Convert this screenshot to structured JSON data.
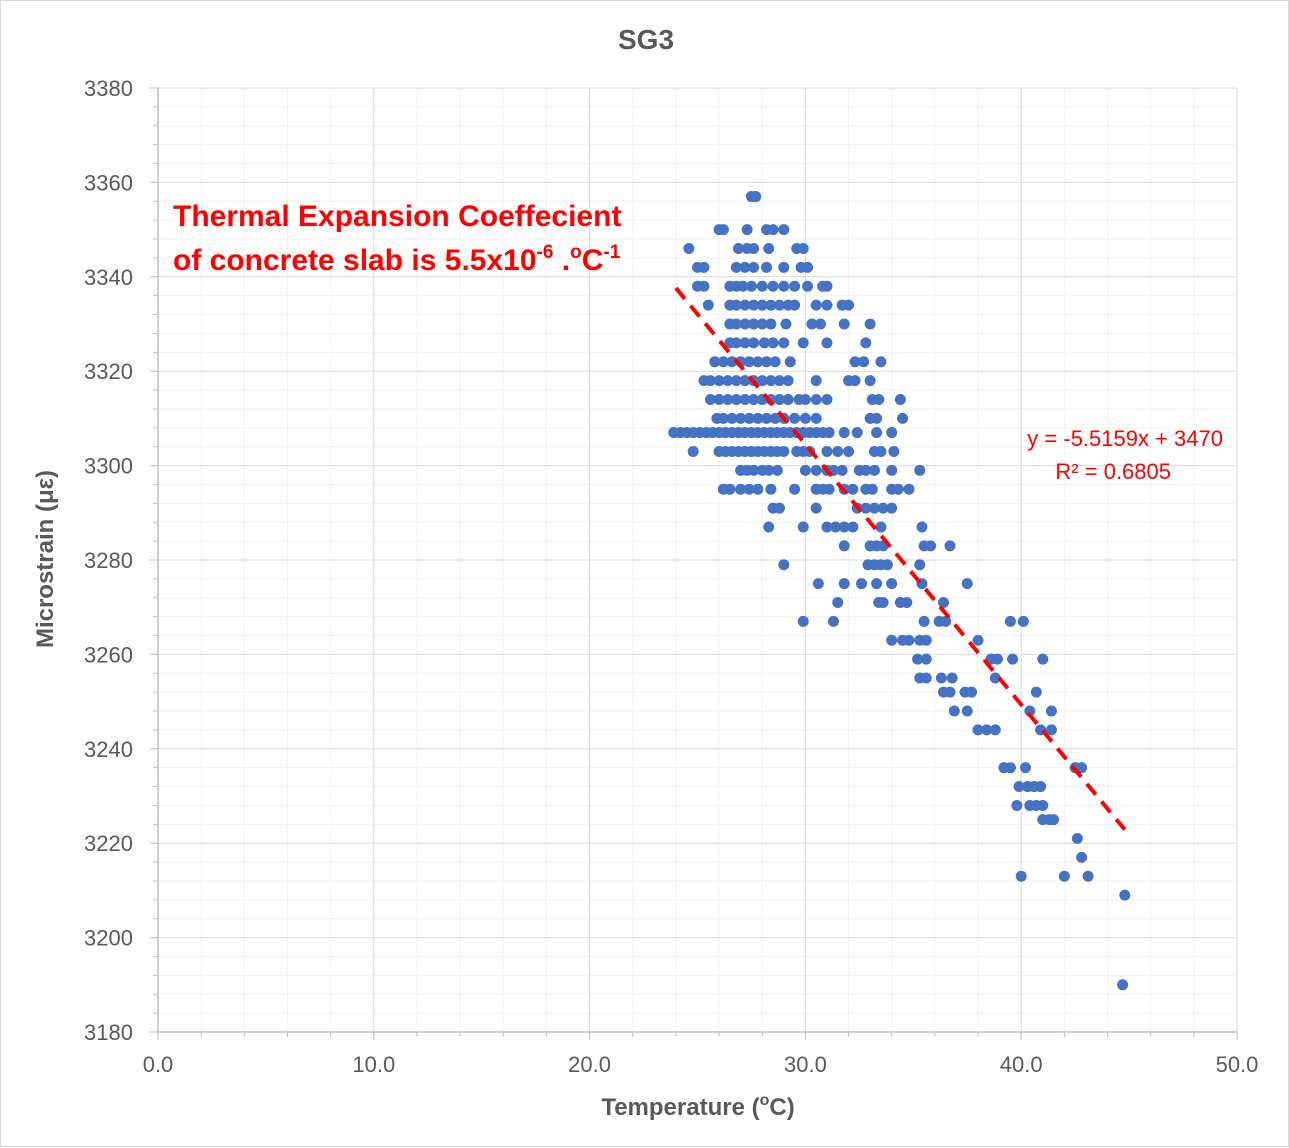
{
  "chart_data": {
    "type": "scatter",
    "title": "SG3",
    "xlabel": {
      "main": "Temperature (",
      "sup": "o",
      "tail": "C)"
    },
    "ylabel": "Microstrain (με)",
    "xlim": [
      0,
      50
    ],
    "ylim": [
      3180,
      3380
    ],
    "x_major_step": 10,
    "x_minor_step": 2,
    "y_major_step": 20,
    "y_minor_step": 4,
    "x_tick_labels": [
      "0.0",
      "10.0",
      "20.0",
      "30.0",
      "40.0",
      "50.0"
    ],
    "y_tick_labels": [
      "3180",
      "3200",
      "3220",
      "3240",
      "3260",
      "3280",
      "3300",
      "3320",
      "3340",
      "3360",
      "3380"
    ],
    "grid": true,
    "marker_color": "#4472c4",
    "trendline": {
      "type": "linear",
      "color": "#ff0000",
      "style": "dashed",
      "slope": -5.5159,
      "intercept": 3470,
      "x_range": [
        24,
        44.8
      ],
      "equation": "y = -5.5159x + 3470",
      "r_squared": "R² = 0.6805"
    },
    "annotation": {
      "line1": "Thermal Expansion Coeffecient",
      "line2_a": "of concrete slab is 5.5x10",
      "line2_sup1": "-6",
      "line2_b": " .",
      "line2_sup2": "o",
      "line2_c": "C",
      "line2_sup3": "-1",
      "color": "#ff0000"
    },
    "points": [
      [
        27.5,
        3357
      ],
      [
        27.7,
        3357
      ],
      [
        26.0,
        3350
      ],
      [
        26.2,
        3350
      ],
      [
        27.3,
        3350
      ],
      [
        28.2,
        3350
      ],
      [
        28.5,
        3350
      ],
      [
        29.0,
        3350
      ],
      [
        24.6,
        3346
      ],
      [
        26.9,
        3346
      ],
      [
        27.3,
        3346
      ],
      [
        27.6,
        3346
      ],
      [
        28.3,
        3346
      ],
      [
        29.6,
        3346
      ],
      [
        29.9,
        3346
      ],
      [
        25.0,
        3342
      ],
      [
        25.3,
        3342
      ],
      [
        26.8,
        3342
      ],
      [
        27.2,
        3342
      ],
      [
        27.6,
        3342
      ],
      [
        28.2,
        3342
      ],
      [
        29.0,
        3342
      ],
      [
        29.8,
        3342
      ],
      [
        30.1,
        3342
      ],
      [
        25.0,
        3338
      ],
      [
        25.3,
        3338
      ],
      [
        26.5,
        3338
      ],
      [
        26.8,
        3338
      ],
      [
        27.1,
        3338
      ],
      [
        27.5,
        3338
      ],
      [
        28.0,
        3338
      ],
      [
        28.5,
        3338
      ],
      [
        29.0,
        3338
      ],
      [
        29.5,
        3338
      ],
      [
        30.1,
        3338
      ],
      [
        30.8,
        3338
      ],
      [
        31.0,
        3338
      ],
      [
        25.5,
        3334
      ],
      [
        26.5,
        3334
      ],
      [
        26.8,
        3334
      ],
      [
        27.2,
        3334
      ],
      [
        27.6,
        3334
      ],
      [
        28.0,
        3334
      ],
      [
        28.4,
        3334
      ],
      [
        28.8,
        3334
      ],
      [
        29.2,
        3334
      ],
      [
        29.5,
        3334
      ],
      [
        30.5,
        3334
      ],
      [
        31.0,
        3334
      ],
      [
        31.7,
        3334
      ],
      [
        32.0,
        3334
      ],
      [
        26.5,
        3330
      ],
      [
        26.8,
        3330
      ],
      [
        27.2,
        3330
      ],
      [
        27.6,
        3330
      ],
      [
        28.0,
        3330
      ],
      [
        28.4,
        3330
      ],
      [
        29.1,
        3330
      ],
      [
        30.3,
        3330
      ],
      [
        30.7,
        3330
      ],
      [
        31.8,
        3330
      ],
      [
        33.0,
        3330
      ],
      [
        26.5,
        3326
      ],
      [
        26.8,
        3326
      ],
      [
        27.2,
        3326
      ],
      [
        27.6,
        3326
      ],
      [
        28.1,
        3326
      ],
      [
        28.5,
        3326
      ],
      [
        29.0,
        3326
      ],
      [
        29.9,
        3326
      ],
      [
        31.0,
        3326
      ],
      [
        32.8,
        3326
      ],
      [
        25.8,
        3322
      ],
      [
        26.2,
        3322
      ],
      [
        26.6,
        3322
      ],
      [
        27.0,
        3322
      ],
      [
        27.4,
        3322
      ],
      [
        27.8,
        3322
      ],
      [
        28.2,
        3322
      ],
      [
        28.6,
        3322
      ],
      [
        29.3,
        3322
      ],
      [
        32.3,
        3322
      ],
      [
        32.7,
        3322
      ],
      [
        33.5,
        3322
      ],
      [
        25.3,
        3318
      ],
      [
        25.6,
        3318
      ],
      [
        26.0,
        3318
      ],
      [
        26.4,
        3318
      ],
      [
        26.8,
        3318
      ],
      [
        27.2,
        3318
      ],
      [
        27.6,
        3318
      ],
      [
        28.0,
        3318
      ],
      [
        28.4,
        3318
      ],
      [
        28.8,
        3318
      ],
      [
        29.2,
        3318
      ],
      [
        30.5,
        3318
      ],
      [
        32.0,
        3318
      ],
      [
        32.3,
        3318
      ],
      [
        33.0,
        3318
      ],
      [
        25.6,
        3314
      ],
      [
        26.0,
        3314
      ],
      [
        26.4,
        3314
      ],
      [
        26.8,
        3314
      ],
      [
        27.2,
        3314
      ],
      [
        27.6,
        3314
      ],
      [
        28.0,
        3314
      ],
      [
        28.4,
        3314
      ],
      [
        28.8,
        3314
      ],
      [
        29.2,
        3314
      ],
      [
        29.7,
        3314
      ],
      [
        30.0,
        3314
      ],
      [
        30.5,
        3314
      ],
      [
        31.0,
        3314
      ],
      [
        33.1,
        3314
      ],
      [
        33.4,
        3314
      ],
      [
        34.4,
        3314
      ],
      [
        25.9,
        3310
      ],
      [
        26.2,
        3310
      ],
      [
        26.6,
        3310
      ],
      [
        27.0,
        3310
      ],
      [
        27.4,
        3310
      ],
      [
        27.8,
        3310
      ],
      [
        28.2,
        3310
      ],
      [
        28.6,
        3310
      ],
      [
        29.0,
        3310
      ],
      [
        29.5,
        3310
      ],
      [
        30.0,
        3310
      ],
      [
        30.5,
        3310
      ],
      [
        33.0,
        3310
      ],
      [
        33.3,
        3310
      ],
      [
        34.5,
        3310
      ],
      [
        23.9,
        3307
      ],
      [
        24.2,
        3307
      ],
      [
        24.5,
        3307
      ],
      [
        24.8,
        3307
      ],
      [
        25.1,
        3307
      ],
      [
        25.4,
        3307
      ],
      [
        25.7,
        3307
      ],
      [
        26.0,
        3307
      ],
      [
        26.3,
        3307
      ],
      [
        26.6,
        3307
      ],
      [
        26.9,
        3307
      ],
      [
        27.2,
        3307
      ],
      [
        27.5,
        3307
      ],
      [
        27.8,
        3307
      ],
      [
        28.1,
        3307
      ],
      [
        28.4,
        3307
      ],
      [
        28.7,
        3307
      ],
      [
        29.0,
        3307
      ],
      [
        29.3,
        3307
      ],
      [
        29.6,
        3307
      ],
      [
        29.9,
        3307
      ],
      [
        30.2,
        3307
      ],
      [
        30.5,
        3307
      ],
      [
        30.8,
        3307
      ],
      [
        31.1,
        3307
      ],
      [
        31.8,
        3307
      ],
      [
        32.4,
        3307
      ],
      [
        33.3,
        3307
      ],
      [
        34.0,
        3307
      ],
      [
        24.8,
        3303
      ],
      [
        26.0,
        3303
      ],
      [
        26.3,
        3303
      ],
      [
        26.6,
        3303
      ],
      [
        26.9,
        3303
      ],
      [
        27.2,
        3303
      ],
      [
        27.5,
        3303
      ],
      [
        27.8,
        3303
      ],
      [
        28.1,
        3303
      ],
      [
        28.4,
        3303
      ],
      [
        28.7,
        3303
      ],
      [
        29.0,
        3303
      ],
      [
        29.6,
        3303
      ],
      [
        29.9,
        3303
      ],
      [
        30.2,
        3303
      ],
      [
        31.0,
        3303
      ],
      [
        31.5,
        3303
      ],
      [
        32.0,
        3303
      ],
      [
        33.2,
        3303
      ],
      [
        33.5,
        3303
      ],
      [
        34.1,
        3303
      ],
      [
        27.0,
        3299
      ],
      [
        27.3,
        3299
      ],
      [
        27.6,
        3299
      ],
      [
        28.0,
        3299
      ],
      [
        28.3,
        3299
      ],
      [
        28.7,
        3299
      ],
      [
        30.0,
        3299
      ],
      [
        30.5,
        3299
      ],
      [
        31.0,
        3299
      ],
      [
        31.3,
        3299
      ],
      [
        31.7,
        3299
      ],
      [
        32.5,
        3299
      ],
      [
        32.8,
        3299
      ],
      [
        33.2,
        3299
      ],
      [
        34.0,
        3299
      ],
      [
        35.3,
        3299
      ],
      [
        26.2,
        3295
      ],
      [
        26.5,
        3295
      ],
      [
        27.0,
        3295
      ],
      [
        27.4,
        3295
      ],
      [
        27.8,
        3295
      ],
      [
        28.4,
        3295
      ],
      [
        29.5,
        3295
      ],
      [
        30.5,
        3295
      ],
      [
        30.8,
        3295
      ],
      [
        31.1,
        3295
      ],
      [
        31.8,
        3295
      ],
      [
        32.2,
        3295
      ],
      [
        32.8,
        3295
      ],
      [
        33.1,
        3295
      ],
      [
        34.0,
        3295
      ],
      [
        34.3,
        3295
      ],
      [
        34.8,
        3295
      ],
      [
        28.5,
        3291
      ],
      [
        28.8,
        3291
      ],
      [
        30.5,
        3291
      ],
      [
        32.4,
        3291
      ],
      [
        32.8,
        3291
      ],
      [
        33.2,
        3291
      ],
      [
        33.6,
        3291
      ],
      [
        34.0,
        3291
      ],
      [
        28.3,
        3287
      ],
      [
        29.9,
        3287
      ],
      [
        31.0,
        3287
      ],
      [
        31.4,
        3287
      ],
      [
        31.8,
        3287
      ],
      [
        32.2,
        3287
      ],
      [
        33.5,
        3287
      ],
      [
        35.4,
        3287
      ],
      [
        31.8,
        3283
      ],
      [
        33.0,
        3283
      ],
      [
        33.3,
        3283
      ],
      [
        33.6,
        3283
      ],
      [
        35.5,
        3283
      ],
      [
        35.8,
        3283
      ],
      [
        36.7,
        3283
      ],
      [
        29.0,
        3279
      ],
      [
        32.9,
        3279
      ],
      [
        33.2,
        3279
      ],
      [
        33.5,
        3279
      ],
      [
        33.8,
        3279
      ],
      [
        35.3,
        3279
      ],
      [
        30.6,
        3275
      ],
      [
        31.8,
        3275
      ],
      [
        32.6,
        3275
      ],
      [
        33.3,
        3275
      ],
      [
        34.0,
        3275
      ],
      [
        35.4,
        3275
      ],
      [
        37.5,
        3275
      ],
      [
        31.5,
        3271
      ],
      [
        33.4,
        3271
      ],
      [
        33.6,
        3271
      ],
      [
        34.4,
        3271
      ],
      [
        34.7,
        3271
      ],
      [
        36.4,
        3271
      ],
      [
        29.9,
        3267
      ],
      [
        31.3,
        3267
      ],
      [
        35.5,
        3267
      ],
      [
        36.2,
        3267
      ],
      [
        36.5,
        3267
      ],
      [
        39.5,
        3267
      ],
      [
        40.1,
        3267
      ],
      [
        34.0,
        3263
      ],
      [
        34.5,
        3263
      ],
      [
        34.8,
        3263
      ],
      [
        35.3,
        3263
      ],
      [
        35.6,
        3263
      ],
      [
        38.0,
        3263
      ],
      [
        35.2,
        3259
      ],
      [
        35.6,
        3259
      ],
      [
        38.6,
        3259
      ],
      [
        38.9,
        3259
      ],
      [
        39.6,
        3259
      ],
      [
        41.0,
        3259
      ],
      [
        35.3,
        3255
      ],
      [
        35.6,
        3255
      ],
      [
        36.3,
        3255
      ],
      [
        36.8,
        3255
      ],
      [
        38.8,
        3255
      ],
      [
        36.4,
        3252
      ],
      [
        36.7,
        3252
      ],
      [
        37.4,
        3252
      ],
      [
        37.7,
        3252
      ],
      [
        40.7,
        3252
      ],
      [
        36.9,
        3248
      ],
      [
        37.5,
        3248
      ],
      [
        40.4,
        3248
      ],
      [
        41.4,
        3248
      ],
      [
        38.0,
        3244
      ],
      [
        38.4,
        3244
      ],
      [
        38.8,
        3244
      ],
      [
        40.9,
        3244
      ],
      [
        41.4,
        3244
      ],
      [
        39.2,
        3236
      ],
      [
        39.5,
        3236
      ],
      [
        40.2,
        3236
      ],
      [
        42.5,
        3236
      ],
      [
        42.8,
        3236
      ],
      [
        39.9,
        3232
      ],
      [
        40.3,
        3232
      ],
      [
        40.6,
        3232
      ],
      [
        40.9,
        3232
      ],
      [
        39.8,
        3228
      ],
      [
        40.4,
        3228
      ],
      [
        40.7,
        3228
      ],
      [
        41.0,
        3228
      ],
      [
        41.0,
        3225
      ],
      [
        41.3,
        3225
      ],
      [
        41.5,
        3225
      ],
      [
        42.6,
        3221
      ],
      [
        42.8,
        3217
      ],
      [
        40.0,
        3213
      ],
      [
        42.0,
        3213
      ],
      [
        43.1,
        3213
      ],
      [
        44.8,
        3209
      ],
      [
        44.7,
        3190
      ]
    ]
  }
}
